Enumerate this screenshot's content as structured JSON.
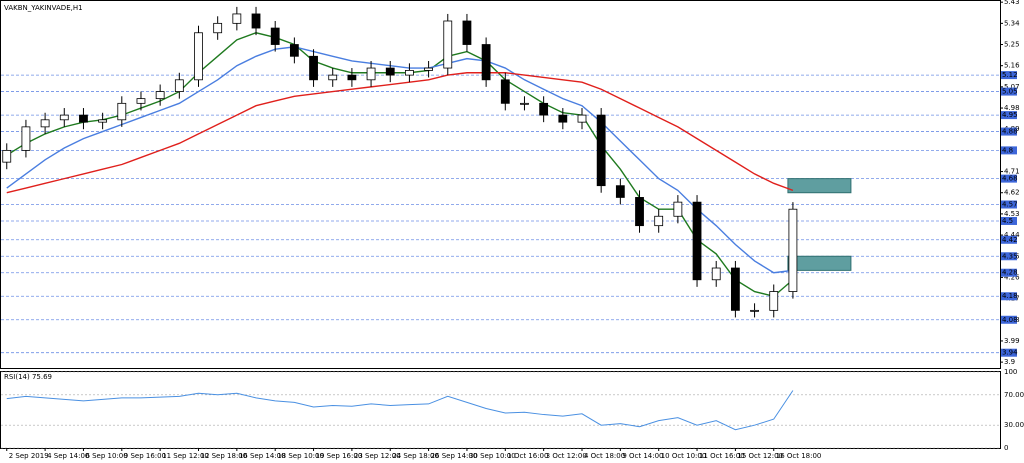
{
  "chart_data": [
    {
      "type": "candlestick",
      "title": "VAKBN_YAKINVADE,H1",
      "x": [
        0,
        1,
        2,
        3,
        4,
        5,
        6,
        7,
        8,
        9,
        10,
        11,
        12,
        13,
        14,
        15,
        16,
        17,
        18,
        19,
        20,
        21,
        22,
        23,
        24,
        25,
        26,
        27,
        28,
        29,
        30,
        31,
        32,
        33,
        34,
        35,
        36,
        37,
        38,
        39,
        40,
        41
      ],
      "open": [
        4.75,
        4.8,
        4.9,
        4.93,
        4.95,
        4.92,
        4.93,
        5.0,
        5.02,
        5.05,
        5.1,
        5.3,
        5.34,
        5.38,
        5.32,
        5.25,
        5.2,
        5.1,
        5.12,
        5.1,
        5.15,
        5.12,
        5.14,
        5.15,
        5.35,
        5.25,
        5.1,
        5.0,
        5.0,
        4.95,
        4.92,
        4.95,
        4.65,
        4.6,
        4.48,
        4.52,
        4.58,
        4.25,
        4.3,
        4.12,
        4.12,
        4.2
      ],
      "high": [
        4.83,
        4.93,
        4.96,
        4.98,
        4.98,
        4.96,
        5.03,
        5.05,
        5.08,
        5.13,
        5.33,
        5.37,
        5.41,
        5.41,
        5.35,
        5.28,
        5.23,
        5.15,
        5.15,
        5.18,
        5.18,
        5.17,
        5.18,
        5.38,
        5.38,
        5.28,
        5.13,
        5.03,
        5.03,
        4.98,
        4.98,
        4.98,
        4.68,
        4.63,
        4.55,
        4.61,
        4.61,
        4.33,
        4.33,
        4.15,
        4.23,
        4.58
      ],
      "low": [
        4.72,
        4.77,
        4.87,
        4.9,
        4.89,
        4.89,
        4.9,
        4.97,
        4.99,
        5.02,
        5.07,
        5.27,
        5.31,
        5.29,
        5.22,
        5.17,
        5.07,
        5.07,
        5.07,
        5.07,
        5.09,
        5.09,
        5.11,
        5.12,
        5.22,
        5.07,
        4.97,
        4.97,
        4.92,
        4.89,
        4.89,
        4.62,
        4.57,
        4.45,
        4.45,
        4.49,
        4.22,
        4.22,
        4.09,
        4.09,
        4.09,
        4.17
      ],
      "close": [
        4.8,
        4.9,
        4.93,
        4.95,
        4.92,
        4.93,
        5.0,
        5.02,
        5.05,
        5.1,
        5.3,
        5.34,
        5.38,
        5.32,
        5.25,
        5.2,
        5.1,
        5.12,
        5.1,
        5.15,
        5.12,
        5.14,
        5.15,
        5.35,
        5.25,
        5.1,
        5.0,
        5.0,
        4.95,
        4.92,
        4.95,
        4.65,
        4.6,
        4.48,
        4.52,
        4.58,
        4.25,
        4.3,
        4.12,
        4.12,
        4.2,
        4.55
      ],
      "series": [
        {
          "color": "#1f7a1f",
          "values": [
            4.78,
            4.83,
            4.87,
            4.9,
            4.92,
            4.93,
            4.95,
            4.98,
            5.01,
            5.05,
            5.13,
            5.2,
            5.27,
            5.3,
            5.28,
            5.25,
            5.18,
            5.15,
            5.13,
            5.13,
            5.13,
            5.13,
            5.14,
            5.2,
            5.22,
            5.18,
            5.1,
            5.05,
            5.0,
            4.96,
            4.95,
            4.82,
            4.72,
            4.6,
            4.55,
            4.55,
            4.42,
            4.36,
            4.25,
            4.2,
            4.18,
            4.25
          ]
        },
        {
          "color": "#4a7ee0",
          "values": [
            4.64,
            4.7,
            4.76,
            4.81,
            4.85,
            4.88,
            4.91,
            4.94,
            4.97,
            5.0,
            5.05,
            5.1,
            5.16,
            5.2,
            5.23,
            5.24,
            5.22,
            5.2,
            5.18,
            5.17,
            5.16,
            5.15,
            5.15,
            5.17,
            5.19,
            5.18,
            5.15,
            5.1,
            5.06,
            5.02,
            4.99,
            4.92,
            4.84,
            4.76,
            4.68,
            4.63,
            4.55,
            4.48,
            4.4,
            4.33,
            4.28,
            4.29
          ]
        },
        {
          "color": "#e0201c",
          "values": [
            4.62,
            4.64,
            4.66,
            4.68,
            4.7,
            4.72,
            4.74,
            4.77,
            4.8,
            4.83,
            4.87,
            4.91,
            4.95,
            4.99,
            5.01,
            5.03,
            5.04,
            5.05,
            5.06,
            5.07,
            5.08,
            5.09,
            5.1,
            5.12,
            5.13,
            5.13,
            5.13,
            5.12,
            5.11,
            5.1,
            5.09,
            5.06,
            5.02,
            4.98,
            4.94,
            4.9,
            4.85,
            4.8,
            4.75,
            4.7,
            4.66,
            4.63
          ]
        }
      ],
      "levels": [
        5.12,
        5.05,
        4.95,
        4.88,
        4.8,
        4.68,
        4.57,
        4.5,
        4.42,
        4.35,
        4.28,
        4.18,
        4.08,
        3.94
      ],
      "zones": [
        {
          "from": 4.62,
          "to": 4.68,
          "color": "#5f9ea0"
        },
        {
          "from": 4.29,
          "to": 4.35,
          "color": "#5f9ea0"
        }
      ],
      "xlim": [
        -0.3,
        51.8
      ],
      "ylim": [
        3.875,
        5.435
      ],
      "yticks": [
        5.43,
        5.34,
        5.25,
        5.16,
        5.07,
        4.98,
        4.89,
        4.8,
        4.71,
        4.62,
        4.53,
        4.44,
        4.35,
        4.26,
        4.17,
        4.08,
        3.99,
        3.9
      ],
      "xticks": [
        {
          "value": 0,
          "label": "2 Sep 2019"
        },
        {
          "value": 2,
          "label": "4 Sep 14:00"
        },
        {
          "value": 4,
          "label": "6 Sep 10:00"
        },
        {
          "value": 6,
          "label": "9 Sep 16:00"
        },
        {
          "value": 8,
          "label": "11 Sep 12:00"
        },
        {
          "value": 10,
          "label": "12 Sep 18:00"
        },
        {
          "value": 12,
          "label": "16 Sep 14:00"
        },
        {
          "value": 14,
          "label": "18 Sep 10:00"
        },
        {
          "value": 16,
          "label": "19 Sep 16:00"
        },
        {
          "value": 18,
          "label": "23 Sep 12:00"
        },
        {
          "value": 20,
          "label": "24 Sep 18:00"
        },
        {
          "value": 22,
          "label": "26 Sep 14:00"
        },
        {
          "value": 24,
          "label": "30 Sep 10:00"
        },
        {
          "value": 26,
          "label": "1 Oct 16:00"
        },
        {
          "value": 28,
          "label": "3 Oct 12:00"
        },
        {
          "value": 30,
          "label": "4 Oct 18:00"
        },
        {
          "value": 32,
          "label": "9 Oct 14:00"
        },
        {
          "value": 34,
          "label": "10 Oct 10:00"
        },
        {
          "value": 36,
          "label": "11 Oct 16:00"
        },
        {
          "value": 38,
          "label": "15 Oct 12:00"
        },
        {
          "value": 40,
          "label": "16 Oct 18:00"
        }
      ]
    },
    {
      "type": "line",
      "title": "RSI(14) 75.69",
      "color": "#4a90e2",
      "values": [
        65,
        68,
        66,
        64,
        62,
        64,
        66,
        66,
        67,
        68,
        72,
        70,
        72,
        66,
        62,
        60,
        54,
        56,
        55,
        58,
        56,
        57,
        58,
        68,
        60,
        52,
        46,
        47,
        44,
        42,
        45,
        30,
        32,
        28,
        36,
        40,
        30,
        36,
        24,
        30,
        38,
        75.69
      ],
      "ylim": [
        0,
        100
      ],
      "yticks": [
        100,
        {
          "value": 70,
          "label": "70.00"
        },
        {
          "value": 30,
          "label": "30.00"
        },
        0
      ]
    }
  ]
}
